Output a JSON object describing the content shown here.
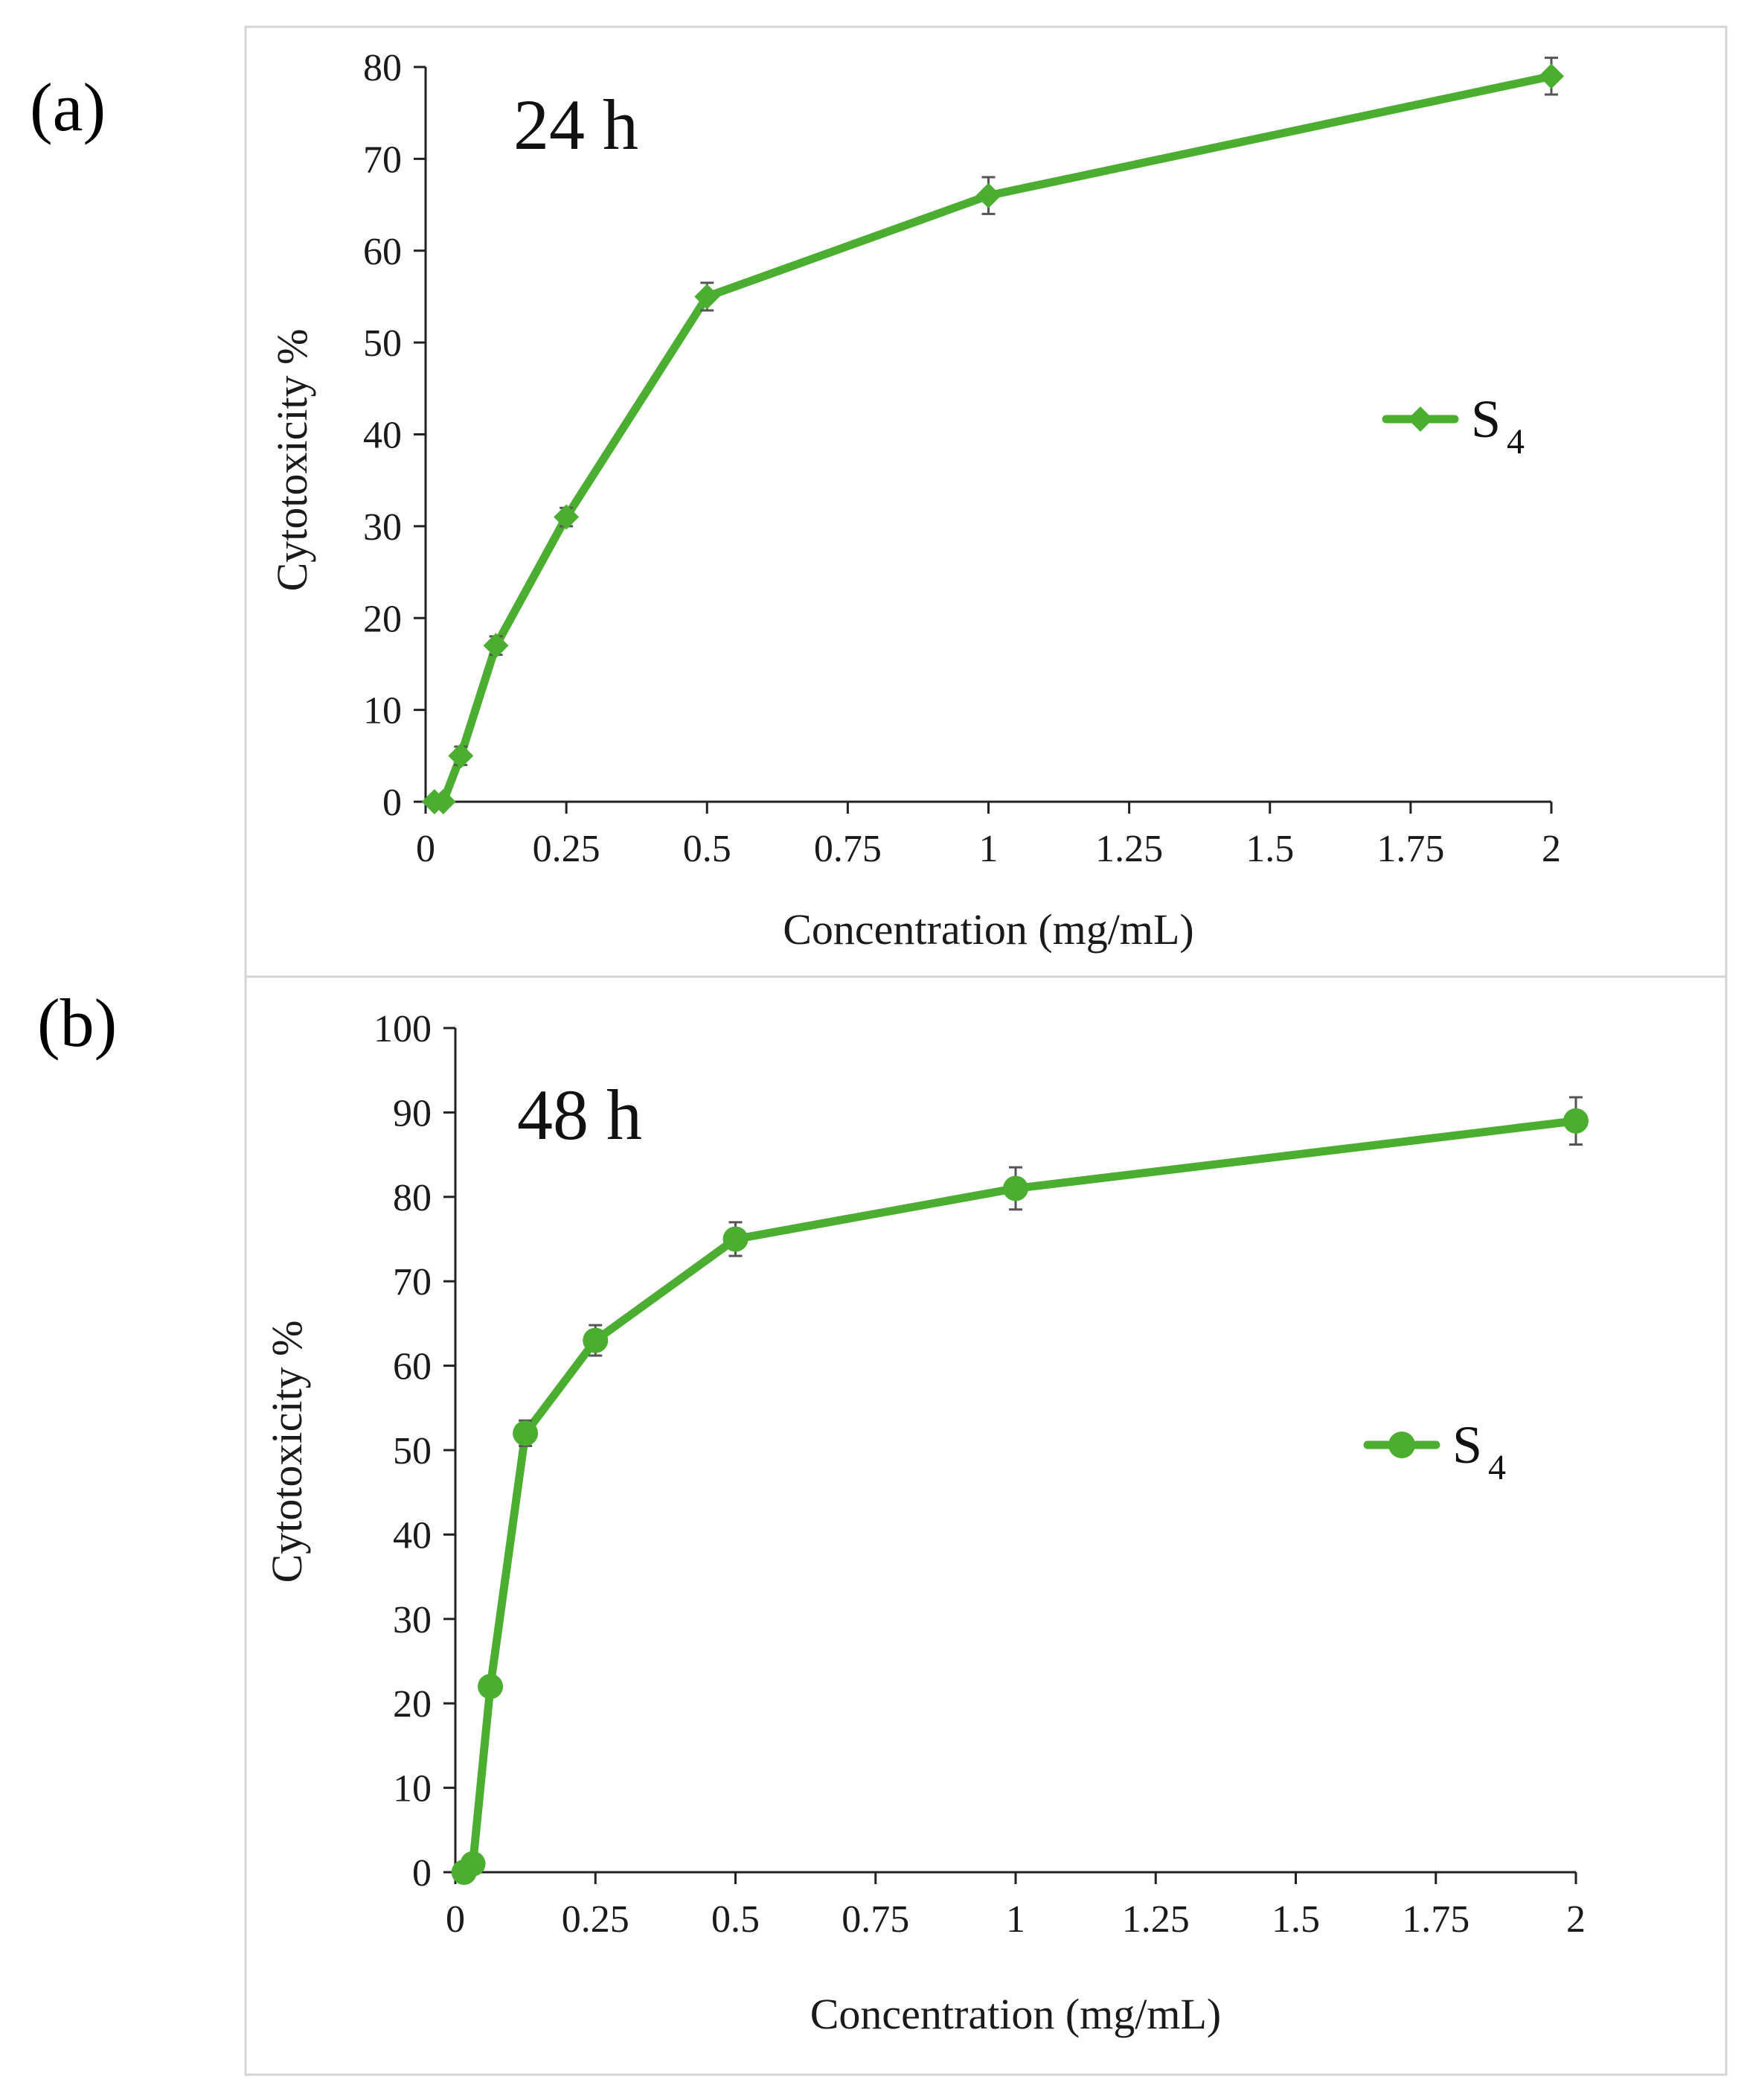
{
  "panels": [
    {
      "panel_label": "(a)",
      "time_label": "24 h"
    },
    {
      "panel_label": "(b)",
      "time_label": "48 h"
    }
  ],
  "chart_data": [
    {
      "type": "line",
      "title": "24 h",
      "xlabel": "Concentration (mg/mL)",
      "ylabel": "Cytotoxicity %",
      "xlim": [
        0,
        2
      ],
      "ylim": [
        0,
        80
      ],
      "x_ticks": [
        "0",
        "0.25",
        "0.5",
        "0.75",
        "1",
        "1.25",
        "1.5",
        "1.75",
        "2"
      ],
      "y_ticks": [
        "0",
        "10",
        "20",
        "30",
        "40",
        "50",
        "60",
        "70",
        "80"
      ],
      "legend": {
        "name": "S",
        "subscript": "4",
        "position": "right"
      },
      "series": [
        {
          "name": "S4",
          "color": "#4cae30",
          "marker": "diamond",
          "x": [
            0.0156,
            0.03125,
            0.0625,
            0.125,
            0.25,
            0.5,
            1,
            2
          ],
          "values": [
            0,
            0,
            5,
            17,
            31,
            55,
            66,
            79
          ],
          "errors": [
            0.5,
            0.5,
            1,
            1,
            1,
            1.5,
            2,
            2
          ]
        }
      ]
    },
    {
      "type": "line",
      "title": "48 h",
      "xlabel": "Concentration (mg/mL)",
      "ylabel": "Cytotoxicity %",
      "xlim": [
        0,
        2
      ],
      "ylim": [
        0,
        100
      ],
      "x_ticks": [
        "0",
        "0.25",
        "0.5",
        "0.75",
        "1",
        "1.25",
        "1.5",
        "1.75",
        "2"
      ],
      "y_ticks": [
        "0",
        "10",
        "20",
        "30",
        "40",
        "50",
        "60",
        "70",
        "80",
        "90",
        "100"
      ],
      "legend": {
        "name": "S",
        "subscript": "4",
        "position": "right"
      },
      "series": [
        {
          "name": "S4",
          "color": "#4cae30",
          "marker": "circle",
          "x": [
            0.0156,
            0.03125,
            0.0625,
            0.125,
            0.25,
            0.5,
            1,
            2
          ],
          "values": [
            0,
            1,
            22,
            52,
            63,
            75,
            81,
            89
          ],
          "errors": [
            0.5,
            0.5,
            1,
            1.5,
            1.8,
            2,
            2.5,
            2.8
          ]
        }
      ]
    }
  ]
}
